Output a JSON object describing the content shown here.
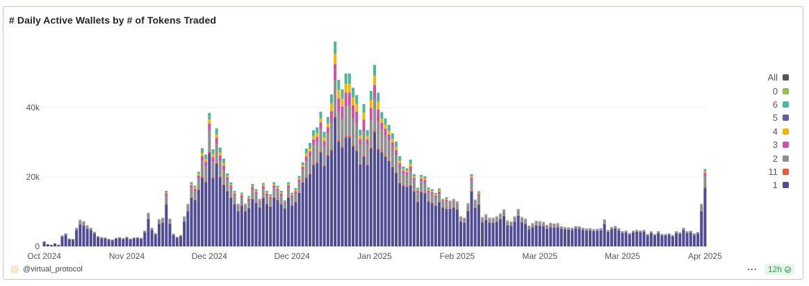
{
  "title": "# Daily Active Wallets by # of Tokens Traded",
  "legend": [
    {
      "label": "All",
      "color": "#555555"
    },
    {
      "label": "0",
      "color": "#8bc34a"
    },
    {
      "label": "6",
      "color": "#4db69b"
    },
    {
      "label": "5",
      "color": "#5c5fa8"
    },
    {
      "label": "4",
      "color": "#f2b705"
    },
    {
      "label": "3",
      "color": "#c954a9"
    },
    {
      "label": "2",
      "color": "#8f8f8f"
    },
    {
      "label": "11",
      "color": "#e8593b"
    },
    {
      "label": "1",
      "color": "#4f4c94"
    }
  ],
  "footer": {
    "author": "@virtual_protocol",
    "refresh": "12h"
  },
  "chart_data": {
    "type": "bar",
    "stacked": true,
    "ylim": [
      0,
      60000
    ],
    "yticks": [
      {
        "value": 0,
        "label": "0"
      },
      {
        "value": 20000,
        "label": "20k"
      },
      {
        "value": 40000,
        "label": "40k"
      }
    ],
    "xticks": [
      {
        "label": "Oct 2024",
        "index": 0
      },
      {
        "label": "Nov 2024",
        "index": 23
      },
      {
        "label": "Dec 2024",
        "index": 46
      },
      {
        "label": "Dec 2024",
        "index": 69
      },
      {
        "label": "Jan 2025",
        "index": 92
      },
      {
        "label": "Feb 2025",
        "index": 115
      },
      {
        "label": "Mar 2025",
        "index": 138
      },
      {
        "label": "Mar 2025",
        "index": 161
      },
      {
        "label": "Apr 2025",
        "index": 184
      }
    ],
    "series_order": [
      "1",
      "11",
      "2",
      "3",
      "4",
      "5",
      "6",
      "0"
    ],
    "series_colors": {
      "1": "#4f4c94",
      "11": "#e8593b",
      "2": "#8f8f8f",
      "3": "#c954a9",
      "4": "#f2b705",
      "5": "#5c5fa8",
      "6": "#4db69b",
      "0": "#8bc34a"
    },
    "totals": [
      1500,
      700,
      500,
      900,
      500,
      3200,
      3800,
      2300,
      2200,
      5400,
      7700,
      7300,
      6100,
      5400,
      4200,
      3000,
      2700,
      2600,
      2200,
      2000,
      2500,
      2700,
      2400,
      2800,
      2300,
      2600,
      2700,
      2500,
      4600,
      9700,
      5400,
      3900,
      7900,
      8300,
      16000,
      8000,
      3700,
      2800,
      3300,
      8700,
      12300,
      18500,
      17500,
      21500,
      28300,
      26500,
      38500,
      28000,
      34000,
      28500,
      25300,
      21000,
      18500,
      16000,
      12300,
      15500,
      12300,
      14500,
      18000,
      16500,
      13700,
      18300,
      16000,
      15000,
      18500,
      17500,
      16000,
      13300,
      18500,
      15500,
      16800,
      20300,
      24200,
      28200,
      29800,
      33500,
      34300,
      38800,
      33000,
      37300,
      43800,
      59000,
      48000,
      45300,
      49800,
      49800,
      45700,
      43600,
      33600,
      41000,
      33500,
      44800,
      52300,
      44300,
      38700,
      36900,
      35000,
      32600,
      30200,
      26000,
      23000,
      22500,
      25000,
      20800,
      16900,
      20600,
      20200,
      17000,
      16500,
      15400,
      16700,
      13700,
      14200,
      13200,
      13700,
      13000,
      8700,
      8300,
      12500,
      20800,
      13500,
      15900,
      8500,
      9300,
      8300,
      8300,
      8700,
      9500,
      10700,
      7500,
      7200,
      8700,
      10800,
      8500,
      8000,
      6000,
      6700,
      7400,
      7300,
      7100,
      6200,
      6800,
      6600,
      6700,
      5800,
      5600,
      5500,
      5400,
      5900,
      5800,
      5400,
      5200,
      5300,
      5000,
      5100,
      5300,
      7800,
      4800,
      5600,
      5900,
      5300,
      4400,
      4600,
      3900,
      4600,
      4800,
      4600,
      4800,
      3600,
      4400,
      3600,
      4400,
      3600,
      3600,
      3800,
      3300,
      4400,
      4100,
      5400,
      4400,
      4600,
      3800,
      4200,
      12300,
      22300
    ]
  }
}
